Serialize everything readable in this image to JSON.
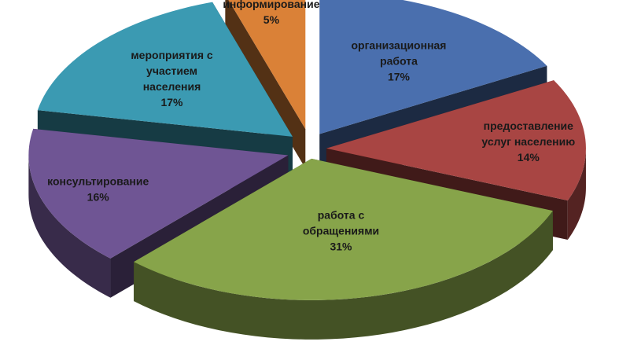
{
  "chart_data": {
    "type": "pie",
    "title": "",
    "legend": "none",
    "slices": [
      {
        "label_lines": [
          "организационная",
          "работа"
        ],
        "percent_label": "17%",
        "value": 17,
        "color": "#4A6FAE"
      },
      {
        "label_lines": [
          "предоставление",
          "услуг населению"
        ],
        "percent_label": "14%",
        "value": 14,
        "color": "#A84543"
      },
      {
        "label_lines": [
          "работа с",
          "обращениями"
        ],
        "percent_label": "31%",
        "value": 31,
        "color": "#87A44A"
      },
      {
        "label_lines": [
          "консультирование"
        ],
        "percent_label": "16%",
        "value": 16,
        "color": "#6F5594"
      },
      {
        "label_lines": [
          "мероприятия с",
          "участием",
          "населения"
        ],
        "percent_label": "17%",
        "value": 17,
        "color": "#3B9AB2"
      },
      {
        "label_lines": [
          "информирование"
        ],
        "percent_label": "5%",
        "value": 5,
        "color": "#DA8137"
      }
    ]
  }
}
